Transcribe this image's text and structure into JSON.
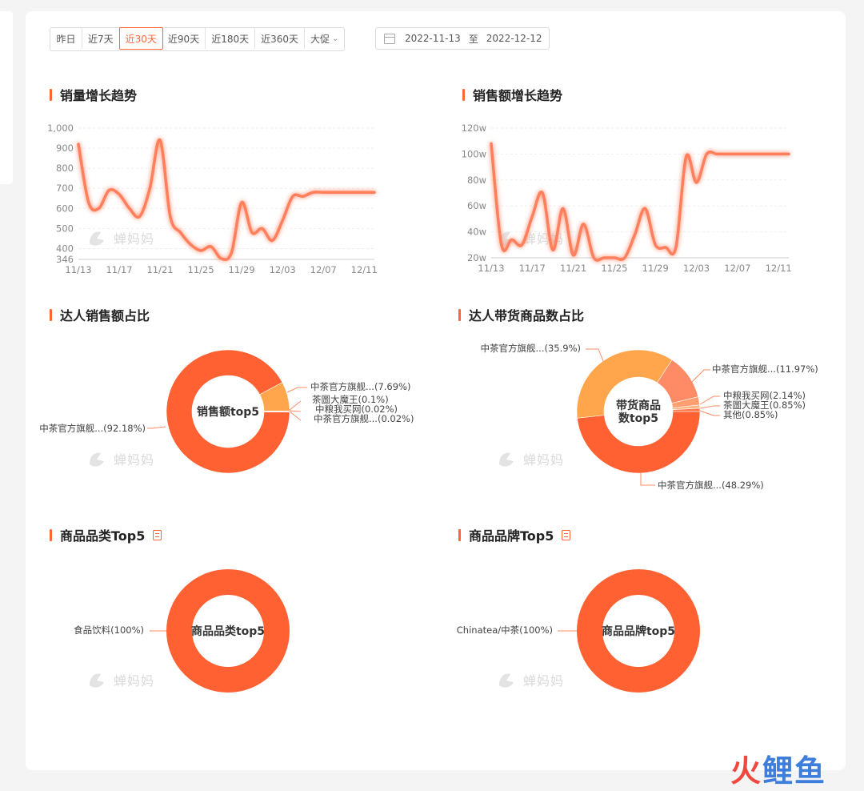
{
  "filter": {
    "ranges": [
      "昨日",
      "近7天",
      "近30天",
      "近90天",
      "近180天",
      "近360天",
      "大促"
    ],
    "active_index": 2,
    "date_start": "2022-11-13",
    "date_sep": "至",
    "date_end": "2022-12-12"
  },
  "sections": {
    "sales_volume": "销量增长趋势",
    "sales_amount": "销售额增长趋势",
    "talent_sales_share": "达人销售额占比",
    "talent_product_share": "达人带货商品数占比",
    "category_top5": "商品品类Top5",
    "brand_top5": "商品品牌Top5"
  },
  "watermark": "蝉妈妈",
  "corner_logo": {
    "part1": "火",
    "part2": "鲤鱼"
  },
  "colors": {
    "accent": "#ff6633",
    "line": "#ff7f5c",
    "donut_main": "#ff6133",
    "donut_orange": "#ffa64d",
    "donut_salmon": "#ff8a66"
  },
  "chart_data": [
    {
      "type": "line",
      "title": "销量增长趋势",
      "x": [
        "11/13",
        "11/14",
        "11/15",
        "11/16",
        "11/17",
        "11/18",
        "11/19",
        "11/20",
        "11/21",
        "11/22",
        "11/23",
        "11/24",
        "11/25",
        "11/26",
        "11/27",
        "11/28",
        "11/29",
        "11/30",
        "12/01",
        "12/02",
        "12/03",
        "12/04",
        "12/05",
        "12/06",
        "12/07",
        "12/08",
        "12/09",
        "12/10",
        "12/11",
        "12/12"
      ],
      "x_tick_labels": [
        "11/13",
        "11/17",
        "11/21",
        "11/25",
        "11/29",
        "12/03",
        "12/07",
        "12/11"
      ],
      "x_tick_indices": [
        0,
        4,
        8,
        12,
        16,
        20,
        24,
        28
      ],
      "values": [
        920,
        630,
        600,
        690,
        670,
        600,
        560,
        700,
        940,
        560,
        480,
        420,
        390,
        410,
        350,
        380,
        630,
        480,
        500,
        440,
        540,
        660,
        660,
        680,
        680,
        680,
        680,
        680,
        680,
        680
      ],
      "y_ticks": [
        "346",
        "400",
        "500",
        "600",
        "700",
        "800",
        "900",
        "1,000"
      ],
      "y_tick_values": [
        346,
        400,
        500,
        600,
        700,
        800,
        900,
        1000
      ],
      "ylim": [
        346,
        1000
      ]
    },
    {
      "type": "line",
      "title": "销售额增长趋势",
      "x": [
        "11/13",
        "11/14",
        "11/15",
        "11/16",
        "11/17",
        "11/18",
        "11/19",
        "11/20",
        "11/21",
        "11/22",
        "11/23",
        "11/24",
        "11/25",
        "11/26",
        "11/27",
        "11/28",
        "11/29",
        "11/30",
        "12/01",
        "12/02",
        "12/03",
        "12/04",
        "12/05",
        "12/06",
        "12/07",
        "12/08",
        "12/09",
        "12/10",
        "12/11",
        "12/12"
      ],
      "x_tick_labels": [
        "11/13",
        "11/17",
        "11/21",
        "11/25",
        "11/29",
        "12/03",
        "12/07",
        "12/11"
      ],
      "x_tick_indices": [
        0,
        4,
        8,
        12,
        16,
        20,
        24,
        28
      ],
      "values": [
        108,
        30,
        34,
        30,
        52,
        70,
        26,
        58,
        22,
        46,
        20,
        20,
        20,
        20,
        38,
        58,
        30,
        28,
        28,
        98,
        78,
        100,
        100,
        100,
        100,
        100,
        100,
        100,
        100,
        100
      ],
      "y_ticks": [
        "20w",
        "40w",
        "60w",
        "80w",
        "100w",
        "120w"
      ],
      "y_tick_values": [
        20,
        40,
        60,
        80,
        100,
        120
      ],
      "ylim": [
        20,
        120
      ]
    },
    {
      "type": "pie",
      "title": "达人销售额占比",
      "center_label": "销售额top5",
      "slices": [
        {
          "label": "中茶官方旗舰...(92.18%)",
          "value": 92.18,
          "color": "#ff6133"
        },
        {
          "label": "中茶官方旗舰...(7.69%)",
          "value": 7.69,
          "color": "#ffa64d"
        },
        {
          "label": "茶圖大魔王(0.1%)",
          "value": 0.1,
          "color": "#ff9a66"
        },
        {
          "label": "中粮我买网(0.02%)",
          "value": 0.02,
          "color": "#ff7a4d"
        },
        {
          "label": "中茶官方旗舰...(0.02%)",
          "value": 0.02,
          "color": "#ff8f66"
        }
      ]
    },
    {
      "type": "pie",
      "title": "达人带货商品数占比",
      "center_label": "带货商品数top5",
      "slices": [
        {
          "label": "中茶官方旗舰...(48.29%)",
          "value": 48.29,
          "color": "#ff6133"
        },
        {
          "label": "中茶官方旗舰...(35.9%)",
          "value": 35.9,
          "color": "#ffa64d"
        },
        {
          "label": "中茶官方旗舰...(11.97%)",
          "value": 11.97,
          "color": "#ff8a66"
        },
        {
          "label": "中粮我买网(2.14%)",
          "value": 2.14,
          "color": "#ff9f70"
        },
        {
          "label": "茶圖大魔王(0.85%)",
          "value": 0.85,
          "color": "#ffb380"
        },
        {
          "label": "其他(0.85%)",
          "value": 0.85,
          "color": "#ff7a4d"
        }
      ]
    },
    {
      "type": "pie",
      "title": "商品品类Top5",
      "center_label": "商品品类top5",
      "slices": [
        {
          "label": "食品饮料(100%)",
          "value": 100,
          "color": "#ff6133"
        }
      ]
    },
    {
      "type": "pie",
      "title": "商品品牌Top5",
      "center_label": "商品品牌top5",
      "slices": [
        {
          "label": "Chinatea/中茶(100%)",
          "value": 100,
          "color": "#ff6133"
        }
      ]
    }
  ]
}
